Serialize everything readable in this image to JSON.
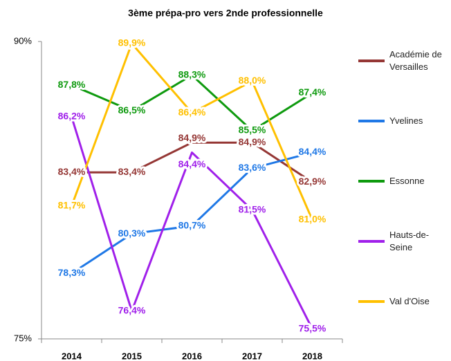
{
  "chart_data": {
    "type": "line",
    "title": "3ème prépa-pro vers 2nde professionnelle",
    "categories": [
      "2014",
      "2015",
      "2016",
      "2017",
      "2018"
    ],
    "ylim": [
      75,
      90
    ],
    "yticks": [
      {
        "value": 75,
        "label": "75%"
      },
      {
        "value": 90,
        "label": "90%"
      }
    ],
    "series": [
      {
        "name": "Académie de Versailles",
        "color": "#953735",
        "values": [
          83.4,
          83.4,
          84.9,
          84.9,
          82.9
        ],
        "value_labels": [
          "83,4%",
          "83,4%",
          "84,9%",
          "84,9%",
          "82,9%"
        ]
      },
      {
        "name": "Yvelines",
        "color": "#1f78e6",
        "values": [
          78.3,
          80.3,
          80.7,
          83.6,
          84.4
        ],
        "value_labels": [
          "78,3%",
          "80,3%",
          "80,7%",
          "83,6%",
          "84,4%"
        ]
      },
      {
        "name": "Essonne",
        "color": "#0e9a0e",
        "values": [
          87.8,
          86.5,
          88.3,
          85.5,
          87.4
        ],
        "value_labels": [
          "87,8%",
          "86,5%",
          "88,3%",
          "85,5%",
          "87,4%"
        ]
      },
      {
        "name": "Hauts-de-Seine",
        "color": "#a020ea",
        "values": [
          86.2,
          76.4,
          84.4,
          81.5,
          75.5
        ],
        "value_labels": [
          "86,2%",
          "76,4%",
          "84,4%",
          "81,5%",
          "75,5%"
        ]
      },
      {
        "name": "Val d'Oise",
        "color": "#ffc000",
        "values": [
          81.7,
          89.9,
          86.4,
          88.0,
          81.0
        ],
        "value_labels": [
          "81,7%",
          "89,9%",
          "86,4%",
          "88,0%",
          "81,0%"
        ]
      }
    ]
  }
}
